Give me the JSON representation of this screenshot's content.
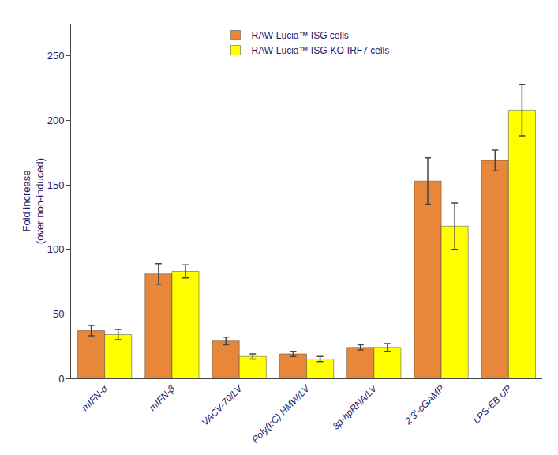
{
  "chart_data": {
    "type": "bar",
    "categories": [
      "mIFN-α",
      "mIFN-β",
      "VACV-70/LV",
      "Poly(I:C) HMW/LV",
      "3p-hpRNA/LV",
      "2’3’-cGAMP",
      "LPS-EB UP"
    ],
    "series": [
      {
        "name": "RAW-Lucia™ ISG cells",
        "color": "#E8873A",
        "values": [
          37,
          81,
          29,
          19,
          24,
          153,
          169
        ],
        "errors": [
          4,
          8,
          3,
          2,
          2,
          18,
          8
        ]
      },
      {
        "name": "RAW-Lucia™ ISG-KO-IRF7 cells",
        "color": "#FFFF00",
        "values": [
          34,
          83,
          17,
          15,
          24,
          118,
          208
        ],
        "errors": [
          4,
          5,
          2,
          2,
          3,
          18,
          20
        ]
      }
    ],
    "ylabel": "Fold increase\n(over non-induced)",
    "ylim": [
      0,
      275
    ],
    "yticks": [
      0,
      50,
      100,
      150,
      200,
      250
    ],
    "grid": false,
    "legend": "upper center"
  }
}
